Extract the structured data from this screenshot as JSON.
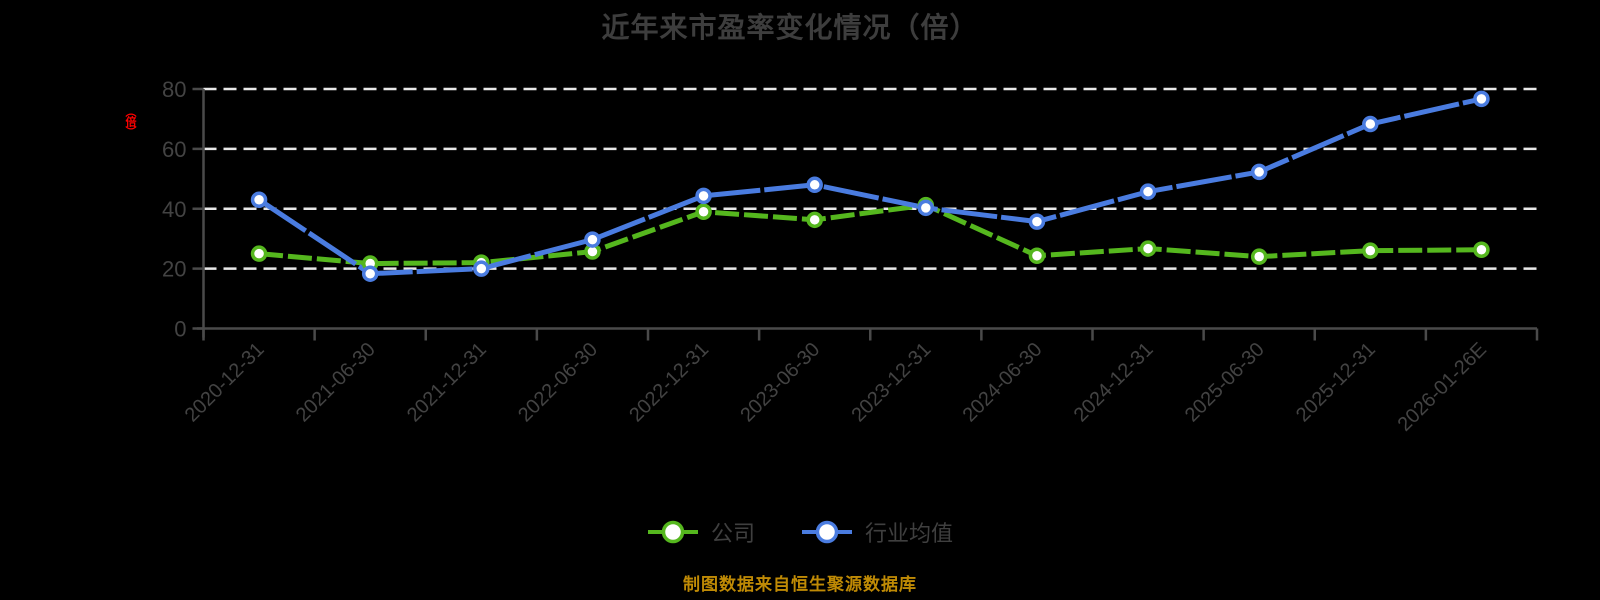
{
  "chart_data": {
    "type": "line",
    "title": "近年来市盈率变化情况（倍）",
    "y_unit_label": "（倍）",
    "categories": [
      "2020-12-31",
      "2021-06-30",
      "2021-12-31",
      "2022-06-30",
      "2022-12-31",
      "2023-06-30",
      "2023-12-31",
      "2024-06-30",
      "2024-12-31",
      "2025-06-30",
      "2025-12-31",
      "2026-01-26E"
    ],
    "series": [
      {
        "name": "公司",
        "color": "#55b71e",
        "marker": "circle",
        "values": [
          25.0,
          21.7,
          22.0,
          25.7,
          39.0,
          36.3,
          41.2,
          24.3,
          26.7,
          24.0,
          26.0,
          26.3
        ]
      },
      {
        "name": "行业均值",
        "color": "#4a7ce0",
        "marker": "circle",
        "values": [
          43.0,
          18.3,
          20.0,
          29.7,
          44.3,
          48.0,
          40.3,
          35.7,
          45.7,
          52.3,
          68.3,
          76.7
        ]
      }
    ],
    "xlabel": "",
    "ylabel": "（倍）",
    "ylim": [
      0,
      80
    ],
    "yticks": [
      0,
      20,
      40,
      60,
      80
    ],
    "grid": "horizontal-dashed",
    "legend_position": "bottom",
    "x_label_rotation": -45
  },
  "footer": {
    "text": "制图数据来自恒生聚源数据库"
  },
  "colors": {
    "background": "#000000",
    "title_text": "#3d3d3d",
    "axis_line": "#4a4a4a",
    "axis_text": "#434343",
    "gridline": "#e8e8e8",
    "unit_text": "#ff0000",
    "footer_text": "#bf8a05",
    "marker_fill": "#ffffff"
  }
}
